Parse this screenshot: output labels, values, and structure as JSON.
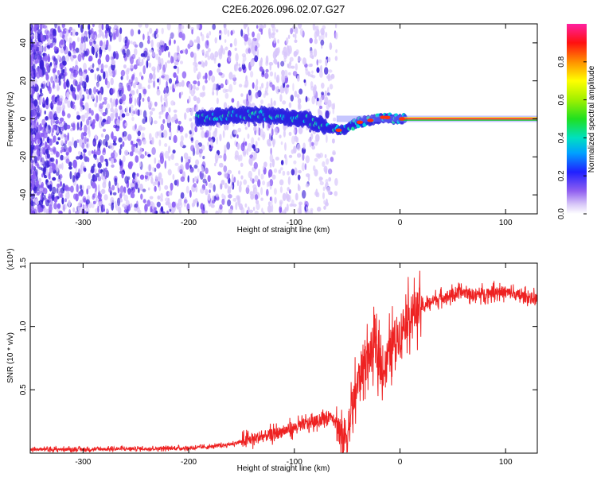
{
  "title": "C2E6.2026.096.02.07.G27",
  "colors": {
    "line": "#ee2222",
    "frame": "#000000",
    "spec_dense": "#3a1fd6",
    "spec_mid": "#8a5cf5",
    "spec_light": "#d9c8fb",
    "background": "#ffffff"
  },
  "chart_data": [
    {
      "type": "heatmap",
      "xlabel": "Height of straight line (km)",
      "ylabel": "Frequency (Hz)",
      "xlim": [
        -350,
        130
      ],
      "ylim": [
        -50,
        50
      ],
      "xticks": [
        -300,
        -200,
        -100,
        0,
        100
      ],
      "yticks": [
        -40,
        -20,
        0,
        20,
        40
      ],
      "xtick_labels": [
        "-300",
        "-200",
        "-100",
        "0",
        "100"
      ],
      "ytick_labels": [
        "-40",
        "-20",
        "0",
        "20",
        "40"
      ],
      "colorbar": {
        "label": "Normalized spectral amplitude",
        "range": [
          0,
          1
        ],
        "ticks": [
          0.0,
          0.2,
          0.4,
          0.6,
          0.8
        ],
        "tick_labels": [
          "0.0",
          "0.2",
          "0.4",
          "0.6",
          "0.8"
        ]
      },
      "trace": {
        "x": [
          -190,
          -160,
          -130,
          -110,
          -90,
          -75,
          -65,
          -58,
          -50,
          -40,
          -30,
          -20,
          -15,
          -5,
          0,
          10,
          50,
          100,
          130
        ],
        "freq": [
          0,
          2,
          2,
          1,
          0,
          -3,
          -5,
          -6,
          -5,
          -2,
          -1,
          0,
          1,
          0,
          0,
          0,
          0,
          0,
          0
        ]
      }
    },
    {
      "type": "line",
      "xlabel": "Height of straight line (km)",
      "ylabel": "SNR (10 * v/v)",
      "scale_label": "(x10⁴)",
      "xlim": [
        -350,
        130
      ],
      "ylim": [
        0,
        15000
      ],
      "xticks": [
        -300,
        -200,
        -100,
        0,
        100
      ],
      "yticks": [
        5000,
        10000,
        15000
      ],
      "xtick_labels": [
        "-300",
        "-200",
        "-100",
        "0",
        "100"
      ],
      "ytick_labels": [
        "0.5",
        "1.0",
        "1.5"
      ],
      "series": [
        {
          "name": "SNR",
          "x": [
            -350,
            -300,
            -250,
            -200,
            -180,
            -160,
            -140,
            -120,
            -100,
            -90,
            -80,
            -70,
            -65,
            -60,
            -55,
            -50,
            -45,
            -40,
            -35,
            -30,
            -25,
            -20,
            -15,
            -10,
            -5,
            0,
            5,
            10,
            20,
            30,
            40,
            50,
            60,
            70,
            80,
            90,
            100,
            110,
            120,
            130
          ],
          "values": [
            300,
            300,
            350,
            400,
            500,
            700,
            1100,
            1500,
            2000,
            2300,
            2500,
            2800,
            3000,
            2500,
            1000,
            1500,
            3500,
            5500,
            7000,
            7500,
            8500,
            7500,
            6500,
            8000,
            9000,
            9500,
            10500,
            11000,
            11500,
            12000,
            12300,
            12500,
            12700,
            12500,
            12600,
            12800,
            12700,
            12500,
            12300,
            12200
          ]
        }
      ]
    }
  ]
}
